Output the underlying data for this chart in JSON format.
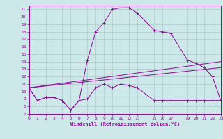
{
  "xlabel": "Windchill (Refroidissement éolien,°C)",
  "bg_color": "#cce8e8",
  "grid_color": "#aacccc",
  "line_color": "#990099",
  "xlim": [
    0,
    23
  ],
  "ylim": [
    7,
    21.5
  ],
  "xticks": [
    0,
    1,
    2,
    3,
    4,
    5,
    6,
    7,
    8,
    9,
    10,
    11,
    12,
    13,
    15,
    16,
    17,
    19,
    20,
    21,
    22,
    23
  ],
  "yticks": [
    7,
    8,
    9,
    10,
    11,
    12,
    13,
    14,
    15,
    16,
    17,
    18,
    19,
    20,
    21
  ],
  "series1_x": [
    0,
    1,
    2,
    3,
    4,
    5,
    6,
    7,
    8,
    9,
    10,
    11,
    12,
    13,
    15,
    16,
    17,
    19,
    20,
    21,
    22,
    23
  ],
  "series1_y": [
    10.5,
    8.8,
    9.2,
    9.2,
    8.8,
    7.5,
    8.8,
    9.0,
    10.5,
    11.0,
    10.5,
    11.0,
    10.8,
    10.5,
    8.8,
    8.8,
    8.8,
    8.8,
    8.8,
    8.8,
    8.8,
    8.8
  ],
  "series2_x": [
    0,
    1,
    2,
    3,
    4,
    5,
    6,
    7,
    8,
    9,
    10,
    11,
    12,
    13,
    15,
    16,
    17,
    19,
    20,
    21,
    22,
    23
  ],
  "series2_y": [
    10.5,
    8.8,
    9.2,
    9.2,
    8.8,
    7.5,
    8.8,
    14.2,
    18.0,
    19.2,
    21.0,
    21.2,
    21.2,
    20.5,
    18.2,
    18.0,
    17.8,
    14.2,
    13.8,
    13.2,
    12.0,
    8.8
  ],
  "series3_x": [
    0,
    23
  ],
  "series3_y": [
    10.5,
    13.2
  ],
  "series4_x": [
    0,
    23
  ],
  "series4_y": [
    10.5,
    14.0
  ]
}
